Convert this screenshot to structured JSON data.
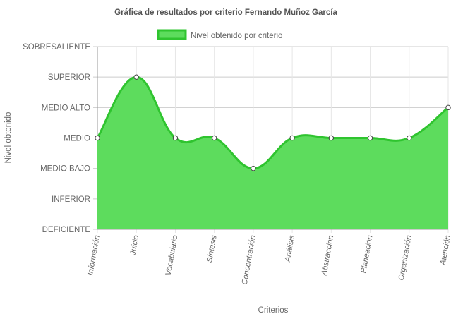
{
  "chart_data": {
    "type": "area",
    "title": "Gráfica de resultados por criterio Fernando Muñoz García",
    "xlabel": "Criterios",
    "ylabel": "Nivel obtenido",
    "legend": {
      "position": "top",
      "label": "Nivel obtenido por criterio"
    },
    "levels": [
      "DEFICIENTE",
      "INFERIOR",
      "MEDIO BAJO",
      "MEDIO",
      "MEDIO ALTO",
      "SUPERIOR",
      "SOBRESALIENTE"
    ],
    "categories": [
      "Información",
      "Juicio",
      "Vocabulario",
      "Síntesis",
      "Concentración",
      "Análisis",
      "Abstracción",
      "Planeación",
      "Organización",
      "Atención"
    ],
    "series": [
      {
        "name": "Nivel obtenido por criterio",
        "values": [
          3,
          5,
          3,
          3,
          2,
          3,
          3,
          3,
          3,
          4
        ]
      }
    ],
    "ylim": [
      0,
      6
    ],
    "grid": true,
    "colors": {
      "fill": "#5ddc5d",
      "line": "#2fc42f",
      "point_fill": "#ffffff",
      "point_stroke": "#444444",
      "grid": "#cccccc",
      "axis": "#999999"
    }
  }
}
